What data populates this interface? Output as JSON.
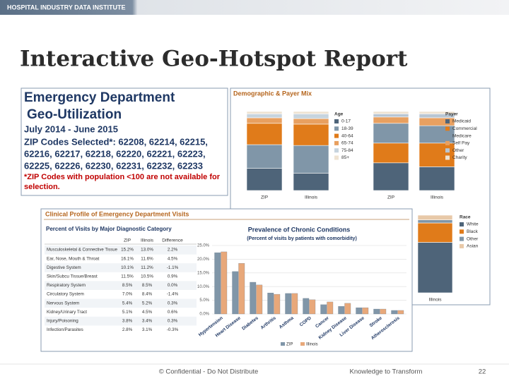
{
  "header": {
    "brand": "HOSPITAL INDUSTRY DATA INSTITUTE",
    "title": "Interactive Geo-Hotspot Report"
  },
  "info": {
    "lines": [
      "Emergency Department",
      "Geo-Utilization",
      "July 2014 -  June 2015",
      "ZIP Codes Selected*: 62208, 62214, 62215,",
      "62216, 62217, 62218, 62220, 62221, 62223,",
      "62225, 62226, 62230, 62231, 62232, 62233",
      "*ZIP Codes with population <100 are not available for",
      "selection."
    ]
  },
  "demographic": {
    "title": "Demographic & Payer Mix"
  },
  "clinical": {
    "title": "Clinical Profile of Emergency Department Visits",
    "table": {
      "title": "Percent of Visits by Major Diagnostic Category",
      "columns": [
        "ZIP",
        "Illinois",
        "Difference"
      ],
      "rows": [
        [
          "Musculoskeletal & Connective Tissue",
          "15.2%",
          "13.0%",
          "2.2%"
        ],
        [
          "Ear, Nose, Mouth & Throat",
          "16.1%",
          "11.6%",
          "4.5%"
        ],
        [
          "Digestive System",
          "10.1%",
          "11.2%",
          "-1.1%"
        ],
        [
          "Skin/Subcu Tissue/Breast",
          "11.5%",
          "10.5%",
          "0.9%"
        ],
        [
          "Respiratory System",
          "8.5%",
          "8.5%",
          "0.0%"
        ],
        [
          "Circulatory System",
          "7.0%",
          "8.4%",
          "-1.4%"
        ],
        [
          "Nervous System",
          "5.4%",
          "5.2%",
          "0.3%"
        ],
        [
          "Kidney/Urinary Tract",
          "5.1%",
          "4.5%",
          "0.6%"
        ],
        [
          "Injury/Poisoning",
          "3.8%",
          "3.4%",
          "0.3%"
        ],
        [
          "Infection/Parasites",
          "2.8%",
          "3.1%",
          "-0.3%"
        ]
      ]
    }
  },
  "chart_data": [
    {
      "type": "stacked_bar",
      "legend_title": "Age",
      "categories": [
        "ZIP",
        "Illinois"
      ],
      "ylim": [
        0,
        100
      ],
      "series": [
        {
          "name": "0-17",
          "color": "#4e6479",
          "values": [
            28,
            22
          ]
        },
        {
          "name": "18-39",
          "color": "#8096a8",
          "values": [
            30,
            35
          ]
        },
        {
          "name": "40-64",
          "color": "#e07b1a",
          "values": [
            27,
            27
          ]
        },
        {
          "name": "65-74",
          "color": "#e8a060",
          "values": [
            7,
            7
          ]
        },
        {
          "name": "75-84",
          "color": "#c7d4de",
          "values": [
            5,
            6
          ]
        },
        {
          "name": "85+",
          "color": "#efe3d2",
          "values": [
            3,
            3
          ]
        }
      ]
    },
    {
      "type": "stacked_bar",
      "legend_title": "Payer",
      "categories": [
        "ZIP",
        "Illinois"
      ],
      "ylim": [
        0,
        100
      ],
      "series": [
        {
          "name": "Medicaid",
          "color": "#4e6479",
          "values": [
            35,
            30
          ]
        },
        {
          "name": "Commercial",
          "color": "#e07b1a",
          "values": [
            25,
            30
          ]
        },
        {
          "name": "Medicare",
          "color": "#8096a8",
          "values": [
            25,
            22
          ]
        },
        {
          "name": "Self Pay",
          "color": "#e8a060",
          "values": [
            8,
            10
          ]
        },
        {
          "name": "Other",
          "color": "#b8c6d3",
          "values": [
            4,
            5
          ]
        },
        {
          "name": "Charity",
          "color": "#efe3d2",
          "values": [
            3,
            3
          ]
        }
      ]
    },
    {
      "type": "stacked_bar",
      "legend_title": "Race",
      "categories": [
        "Illinois"
      ],
      "ylim": [
        0,
        100
      ],
      "series": [
        {
          "name": "White",
          "color": "#4e6479",
          "values": [
            65
          ]
        },
        {
          "name": "Black",
          "color": "#e07b1a",
          "values": [
            25
          ]
        },
        {
          "name": "Other",
          "color": "#8096a8",
          "values": [
            4
          ]
        },
        {
          "name": "Asian",
          "color": "#e8c9a8",
          "values": [
            6
          ]
        }
      ]
    },
    {
      "type": "bar",
      "title": "Prevalence of Chronic Conditions",
      "subtitle": "(Percent of visits by patients with comorbidity)",
      "categories": [
        "Hypertension",
        "Heart Disease",
        "Diabetes",
        "Arthritis",
        "Asthma",
        "COPD",
        "Cancer",
        "Kidney Disease",
        "Liver Disease",
        "Stroke",
        "Atherosclerosis"
      ],
      "series": [
        {
          "name": "ZIP",
          "color": "#8096a8",
          "values": [
            22.4,
            15.5,
            11.6,
            7.7,
            7.5,
            5.7,
            3.4,
            2.8,
            2.3,
            1.8,
            1.3
          ]
        },
        {
          "name": "Illinois",
          "color": "#e8a87a",
          "values": [
            22.7,
            18.5,
            10.6,
            7.2,
            7.5,
            5.2,
            4.4,
            3.9,
            2.3,
            1.8,
            1.3
          ]
        }
      ],
      "ylim": [
        0,
        25
      ],
      "yticks": [
        {
          "value": 0,
          "label": "0.0%"
        },
        {
          "value": 5,
          "label": "5.0%"
        },
        {
          "value": 10,
          "label": "10.0%"
        },
        {
          "value": 15,
          "label": "15.0%"
        },
        {
          "value": 20,
          "label": "20.0%"
        },
        {
          "value": 25,
          "label": "25.0%"
        }
      ],
      "grid": true
    }
  ],
  "footer": {
    "confidential": "© Confidential - Do Not Distribute",
    "tagline": "Knowledge to Transform",
    "page": "22"
  }
}
